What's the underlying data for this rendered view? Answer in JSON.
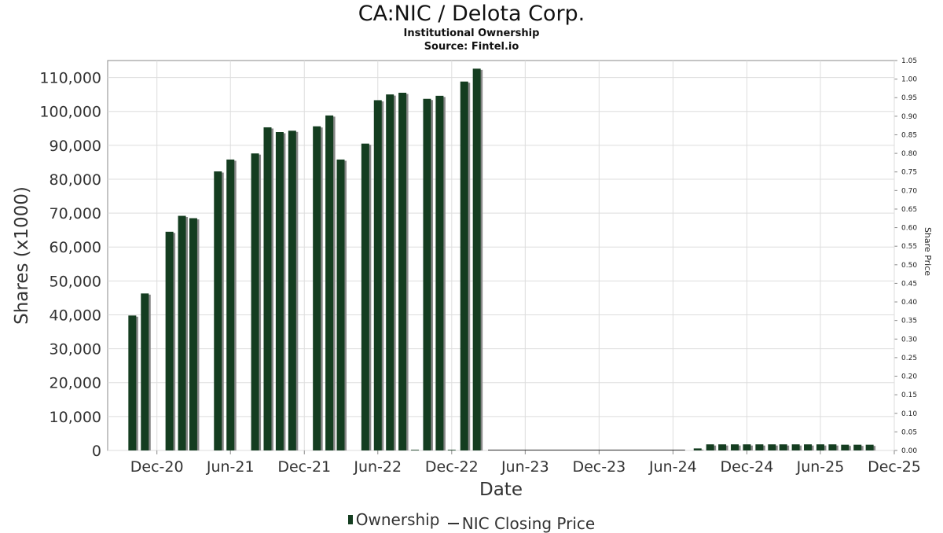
{
  "title": "CA:NIC / Delota Corp.",
  "subtitle": "Institutional Ownership",
  "source": "Source: Fintel.io",
  "colors": {
    "bar": "#143d20",
    "bar_shadow": "#888888",
    "grid": "#dddddd"
  },
  "chart_data": {
    "type": "bar",
    "xlabel": "Date",
    "ylabel": "Shares (x1000)",
    "y2label": "Share Price",
    "ylim": [
      0,
      115000
    ],
    "y2lim": [
      0,
      1.05
    ],
    "yticks": [
      "0",
      "10,000",
      "20,000",
      "30,000",
      "40,000",
      "50,000",
      "60,000",
      "70,000",
      "80,000",
      "90,000",
      "100,000",
      "110,000"
    ],
    "yticks_values": [
      0,
      10000,
      20000,
      30000,
      40000,
      50000,
      60000,
      70000,
      80000,
      90000,
      100000,
      110000
    ],
    "y2ticks": [
      "0.00",
      "0.05",
      "0.10",
      "0.15",
      "0.20",
      "0.25",
      "0.30",
      "0.35",
      "0.40",
      "0.45",
      "0.50",
      "0.55",
      "0.60",
      "0.65",
      "0.70",
      "0.75",
      "0.80",
      "0.85",
      "0.90",
      "0.95",
      "1.00",
      "1.05"
    ],
    "xticks": [
      {
        "label": "Dec-20",
        "date": "2020-12-01"
      },
      {
        "label": "Jun-21",
        "date": "2021-06-01"
      },
      {
        "label": "Dec-21",
        "date": "2021-12-01"
      },
      {
        "label": "Jun-22",
        "date": "2022-06-01"
      },
      {
        "label": "Dec-22",
        "date": "2022-12-01"
      },
      {
        "label": "Jun-23",
        "date": "2023-06-01"
      },
      {
        "label": "Dec-23",
        "date": "2023-12-01"
      },
      {
        "label": "Jun-24",
        "date": "2024-06-01"
      },
      {
        "label": "Dec-24",
        "date": "2024-12-01"
      },
      {
        "label": "Jun-25",
        "date": "2025-06-01"
      },
      {
        "label": "Dec-25",
        "date": "2025-12-01"
      }
    ],
    "xlim": [
      "2020-08-01",
      "2025-12-01"
    ],
    "grid": true,
    "legend": "bottom-center",
    "series": [
      {
        "name": "Ownership",
        "type": "bar",
        "points": [
          {
            "date": "2020-10-01",
            "value": 39800
          },
          {
            "date": "2020-11-01",
            "value": 46300
          },
          {
            "date": "2021-01-01",
            "value": 64500
          },
          {
            "date": "2021-02-01",
            "value": 69200
          },
          {
            "date": "2021-03-01",
            "value": 68500
          },
          {
            "date": "2021-05-01",
            "value": 82300
          },
          {
            "date": "2021-06-01",
            "value": 85800
          },
          {
            "date": "2021-08-01",
            "value": 87600
          },
          {
            "date": "2021-09-01",
            "value": 95300
          },
          {
            "date": "2021-10-01",
            "value": 93900
          },
          {
            "date": "2021-11-01",
            "value": 94300
          },
          {
            "date": "2022-01-01",
            "value": 95600
          },
          {
            "date": "2022-02-01",
            "value": 98800
          },
          {
            "date": "2022-03-01",
            "value": 85800
          },
          {
            "date": "2022-05-01",
            "value": 90500
          },
          {
            "date": "2022-06-01",
            "value": 103300
          },
          {
            "date": "2022-07-01",
            "value": 105000
          },
          {
            "date": "2022-08-01",
            "value": 105500
          },
          {
            "date": "2022-09-01",
            "value": 200
          },
          {
            "date": "2022-10-01",
            "value": 103700
          },
          {
            "date": "2022-11-01",
            "value": 104600
          },
          {
            "date": "2022-12-01",
            "value": 200
          },
          {
            "date": "2023-01-01",
            "value": 108800
          },
          {
            "date": "2023-02-01",
            "value": 112600
          },
          {
            "date": "2024-08-01",
            "value": 600
          },
          {
            "date": "2024-09-01",
            "value": 1800
          },
          {
            "date": "2024-10-01",
            "value": 1800
          },
          {
            "date": "2024-11-01",
            "value": 1800
          },
          {
            "date": "2024-12-01",
            "value": 1800
          },
          {
            "date": "2025-01-01",
            "value": 1800
          },
          {
            "date": "2025-02-01",
            "value": 1800
          },
          {
            "date": "2025-03-01",
            "value": 1800
          },
          {
            "date": "2025-04-01",
            "value": 1800
          },
          {
            "date": "2025-05-01",
            "value": 1800
          },
          {
            "date": "2025-06-01",
            "value": 1800
          },
          {
            "date": "2025-07-01",
            "value": 1800
          },
          {
            "date": "2025-08-01",
            "value": 1700
          },
          {
            "date": "2025-09-01",
            "value": 1700
          },
          {
            "date": "2025-10-01",
            "value": 1700
          }
        ]
      },
      {
        "name": "NIC Closing Price",
        "type": "line",
        "points": [
          {
            "date": "2023-03-01",
            "value": 0.0
          },
          {
            "date": "2024-07-01",
            "value": 0.0
          }
        ]
      }
    ]
  }
}
